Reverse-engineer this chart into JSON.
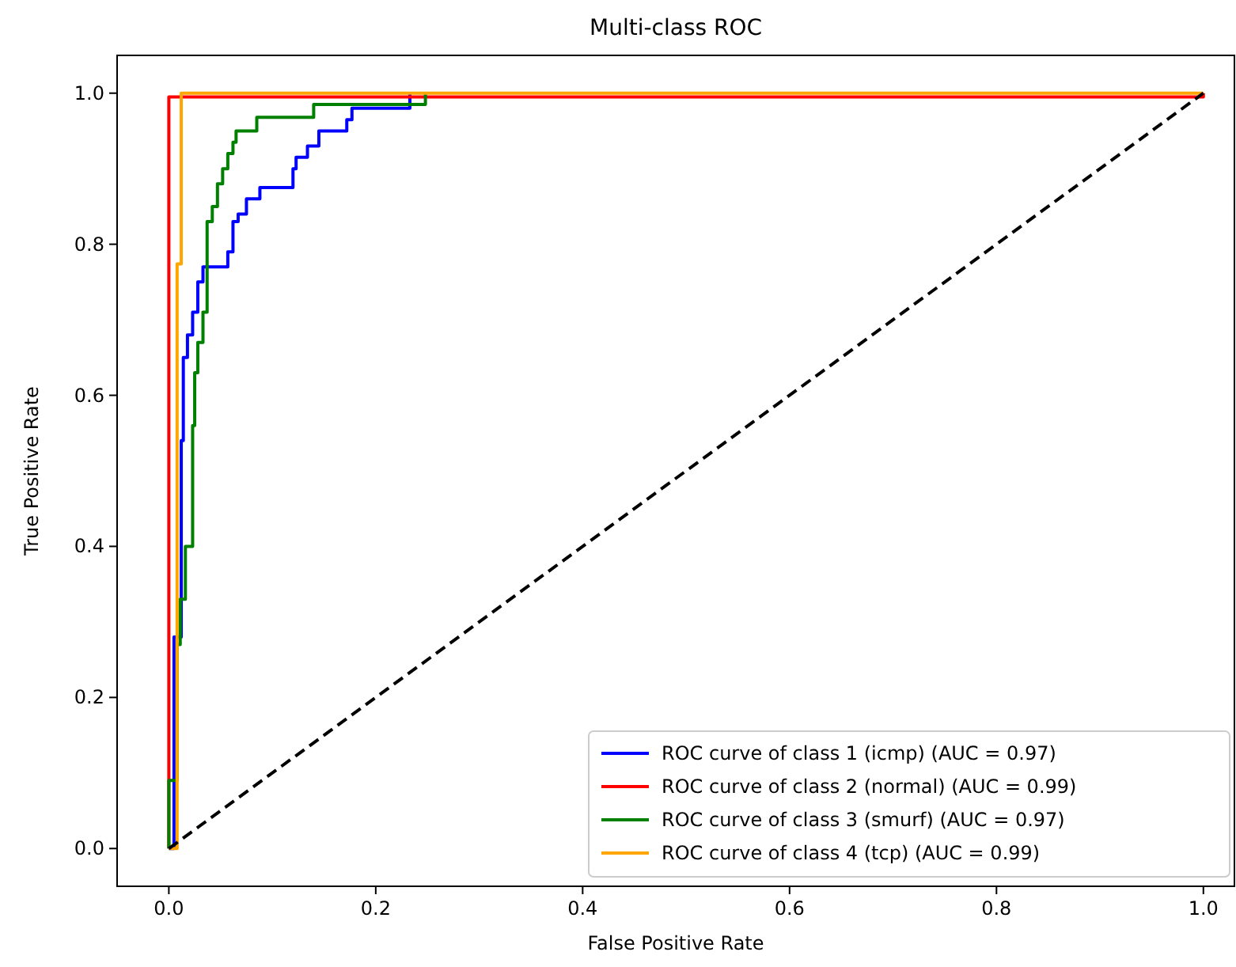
{
  "chart_data": {
    "type": "line",
    "title": "Multi-class ROC",
    "xlabel": "False Positive Rate",
    "ylabel": "True Positive Rate",
    "xlim": [
      -0.05,
      1.03
    ],
    "ylim": [
      -0.05,
      1.05
    ],
    "xticks": [
      {
        "value": 0,
        "label": "0.0"
      },
      {
        "value": 0.2,
        "label": "0.2"
      },
      {
        "value": 0.4,
        "label": "0.4"
      },
      {
        "value": 0.6,
        "label": "0.6"
      },
      {
        "value": 0.8,
        "label": "0.8"
      },
      {
        "value": 1,
        "label": "1.0"
      }
    ],
    "yticks": [
      {
        "value": 0,
        "label": "0.0"
      },
      {
        "value": 0.2,
        "label": "0.2"
      },
      {
        "value": 0.4,
        "label": "0.4"
      },
      {
        "value": 0.6,
        "label": "0.6"
      },
      {
        "value": 0.8,
        "label": "0.8"
      },
      {
        "value": 1,
        "label": "1.0"
      }
    ],
    "grid": false,
    "legend": "bottom right",
    "marker": "none",
    "series": [
      {
        "name": "ROC curve of class 1 (icmp) (AUC = 0.97)",
        "color": "#0000ff",
        "x": [
          0,
          0.005,
          0.005,
          0.012,
          0.012,
          0.014,
          0.014,
          0.018,
          0.018,
          0.023,
          0.023,
          0.028,
          0.028,
          0.033,
          0.033,
          0.057,
          0.057,
          0.062,
          0.062,
          0.067,
          0.067,
          0.075,
          0.075,
          0.088,
          0.088,
          0.12,
          0.12,
          0.123,
          0.123,
          0.134,
          0.134,
          0.145,
          0.145,
          0.172,
          0.172,
          0.177,
          0.177,
          0.233,
          0.233
        ],
        "values": [
          0,
          0,
          0.28,
          0.28,
          0.54,
          0.54,
          0.65,
          0.65,
          0.68,
          0.68,
          0.71,
          0.71,
          0.75,
          0.75,
          0.77,
          0.77,
          0.79,
          0.79,
          0.83,
          0.83,
          0.84,
          0.84,
          0.86,
          0.86,
          0.875,
          0.875,
          0.9,
          0.9,
          0.915,
          0.915,
          0.93,
          0.93,
          0.95,
          0.95,
          0.965,
          0.965,
          0.98,
          0.98,
          1
        ]
      },
      {
        "name": "ROC curve of class 2 (normal) (AUC = 0.99)",
        "color": "#ff0000",
        "x": [
          0,
          0,
          1,
          1
        ],
        "values": [
          0,
          0.995,
          0.995,
          1
        ]
      },
      {
        "name": "ROC curve of class 3 (smurf) (AUC = 0.97)",
        "color": "#008000",
        "x": [
          0,
          0,
          0.008,
          0.008,
          0.011,
          0.011,
          0.016,
          0.016,
          0.023,
          0.023,
          0.025,
          0.025,
          0.028,
          0.028,
          0.033,
          0.033,
          0.037,
          0.037,
          0.042,
          0.042,
          0.047,
          0.047,
          0.052,
          0.052,
          0.057,
          0.057,
          0.062,
          0.062,
          0.065,
          0.065,
          0.085,
          0.085,
          0.14,
          0.14,
          0.248,
          0.248
        ],
        "values": [
          0,
          0.09,
          0.09,
          0.27,
          0.27,
          0.33,
          0.33,
          0.4,
          0.4,
          0.56,
          0.56,
          0.63,
          0.63,
          0.67,
          0.67,
          0.71,
          0.71,
          0.83,
          0.83,
          0.85,
          0.85,
          0.88,
          0.88,
          0.9,
          0.9,
          0.92,
          0.92,
          0.935,
          0.935,
          0.95,
          0.95,
          0.968,
          0.968,
          0.985,
          0.985,
          1
        ]
      },
      {
        "name": "ROC curve of class 4 (tcp) (AUC = 0.99)",
        "color": "#ffa500",
        "x": [
          0,
          0.008,
          0.008,
          0.012,
          0.012,
          1
        ],
        "values": [
          0,
          0,
          0.774,
          0.774,
          1,
          1
        ]
      },
      {
        "color": "#000000",
        "line_style": "dashed",
        "x": [
          0,
          1
        ],
        "values": [
          0,
          1
        ]
      }
    ]
  }
}
